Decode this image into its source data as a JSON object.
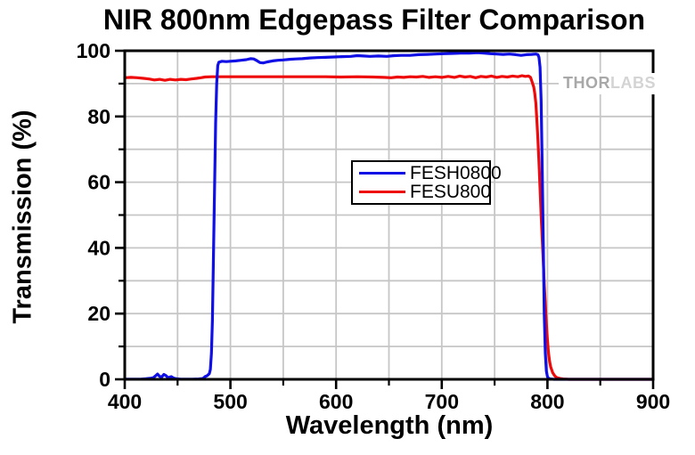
{
  "title": "NIR 800nm Edgepass Filter Comparison",
  "watermark": {
    "part1": "THOR",
    "part2": "LABS"
  },
  "chart_data": {
    "type": "line",
    "title": "NIR 800nm Edgepass Filter Comparison",
    "xlabel": "Wavelength (nm)",
    "ylabel": "Transmission (%)",
    "xlim": [
      400,
      900
    ],
    "ylim": [
      0,
      100
    ],
    "x_major_ticks": [
      400,
      500,
      600,
      700,
      800,
      900
    ],
    "x_minor_ticks": [
      450,
      550,
      650,
      750,
      850
    ],
    "y_major_ticks": [
      0,
      20,
      40,
      60,
      80,
      100
    ],
    "y_minor_ticks": [
      10,
      30,
      50,
      70,
      90
    ],
    "grid": true,
    "grid_x": [
      450,
      500,
      550,
      600,
      650,
      700,
      750,
      800,
      850
    ],
    "grid_y": [
      10,
      20,
      30,
      40,
      50,
      60,
      70,
      80,
      90
    ],
    "colors": {
      "grid": "#c6c6c6",
      "axis": "#000000",
      "fesh0800": "#0f0fe6",
      "fesu800": "#ee0a0a"
    },
    "legend": {
      "position": "center",
      "entries": [
        "FESH0800",
        "FESU800"
      ]
    },
    "series": [
      {
        "name": "FESU800",
        "color": "#ee0a0a",
        "points": [
          [
            400,
            91.8
          ],
          [
            406,
            91.9
          ],
          [
            412,
            91.8
          ],
          [
            418,
            91.6
          ],
          [
            423,
            91.4
          ],
          [
            428,
            91.1
          ],
          [
            433,
            91.3
          ],
          [
            438,
            91.0
          ],
          [
            443,
            91.3
          ],
          [
            448,
            91.1
          ],
          [
            453,
            91.3
          ],
          [
            458,
            91.2
          ],
          [
            463,
            91.4
          ],
          [
            468,
            91.6
          ],
          [
            472,
            91.8
          ],
          [
            476,
            92.0
          ],
          [
            482,
            92.1
          ],
          [
            490,
            92.1
          ],
          [
            500,
            92.1
          ],
          [
            515,
            92.1
          ],
          [
            530,
            92.1
          ],
          [
            545,
            92.1
          ],
          [
            560,
            92.1
          ],
          [
            575,
            92.1
          ],
          [
            590,
            92.1
          ],
          [
            605,
            92.0
          ],
          [
            620,
            92.1
          ],
          [
            635,
            92.0
          ],
          [
            645,
            91.9
          ],
          [
            652,
            91.8
          ],
          [
            658,
            92.0
          ],
          [
            664,
            91.9
          ],
          [
            670,
            92.1
          ],
          [
            676,
            92.0
          ],
          [
            682,
            92.2
          ],
          [
            688,
            91.9
          ],
          [
            694,
            92.1
          ],
          [
            700,
            91.9
          ],
          [
            706,
            92.2
          ],
          [
            712,
            91.9
          ],
          [
            717,
            92.3
          ],
          [
            722,
            92.0
          ],
          [
            727,
            92.2
          ],
          [
            732,
            91.8
          ],
          [
            737,
            92.2
          ],
          [
            742,
            92.0
          ],
          [
            747,
            92.3
          ],
          [
            752,
            91.9
          ],
          [
            757,
            92.2
          ],
          [
            762,
            92.0
          ],
          [
            767,
            92.3
          ],
          [
            772,
            92.1
          ],
          [
            776,
            92.4
          ],
          [
            779,
            92.2
          ],
          [
            782,
            92.3
          ],
          [
            784,
            91.9
          ],
          [
            785,
            91.0
          ],
          [
            787,
            89.0
          ],
          [
            788,
            87.0
          ],
          [
            789,
            84.0
          ],
          [
            790,
            79.0
          ],
          [
            791,
            73.0
          ],
          [
            792,
            66.0
          ],
          [
            793,
            58.0
          ],
          [
            794,
            50.0
          ],
          [
            795,
            43.0
          ],
          [
            796,
            36.0
          ],
          [
            797,
            29.0
          ],
          [
            798,
            23.0
          ],
          [
            799,
            17.0
          ],
          [
            800,
            12.0
          ],
          [
            801,
            8.0
          ],
          [
            802,
            5.5
          ],
          [
            803,
            3.8
          ],
          [
            805,
            2.0
          ],
          [
            807,
            1.0
          ],
          [
            809,
            0.5
          ],
          [
            812,
            0.25
          ],
          [
            815,
            0.1
          ],
          [
            820,
            0
          ],
          [
            840,
            0
          ],
          [
            870,
            0
          ],
          [
            900,
            0
          ]
        ]
      },
      {
        "name": "FESH0800",
        "color": "#0f0fe6",
        "points": [
          [
            400,
            0.05
          ],
          [
            408,
            0.05
          ],
          [
            415,
            0.05
          ],
          [
            420,
            0.15
          ],
          [
            424,
            0.3
          ],
          [
            427,
            0.5
          ],
          [
            429,
            1.0
          ],
          [
            431,
            1.6
          ],
          [
            433,
            0.9
          ],
          [
            435,
            0.7
          ],
          [
            437,
            1.5
          ],
          [
            439,
            1.1
          ],
          [
            441,
            0.5
          ],
          [
            444,
            0.8
          ],
          [
            446,
            0.4
          ],
          [
            449,
            0.15
          ],
          [
            453,
            0.05
          ],
          [
            458,
            0.05
          ],
          [
            464,
            0.05
          ],
          [
            470,
            0.1
          ],
          [
            474,
            0.25
          ],
          [
            476,
            0.8
          ],
          [
            478,
            1.1
          ],
          [
            480,
            1.7
          ],
          [
            481,
            3
          ],
          [
            482,
            8
          ],
          [
            483,
            18
          ],
          [
            484,
            38
          ],
          [
            485,
            58
          ],
          [
            486,
            78
          ],
          [
            487,
            90
          ],
          [
            488,
            95.5
          ],
          [
            489,
            96.5
          ],
          [
            492,
            96.8
          ],
          [
            496,
            96.7
          ],
          [
            500,
            96.8
          ],
          [
            505,
            96.9
          ],
          [
            510,
            97.1
          ],
          [
            515,
            97.3
          ],
          [
            519,
            97.6
          ],
          [
            522,
            97.5
          ],
          [
            525,
            97.0
          ],
          [
            528,
            96.4
          ],
          [
            531,
            96.3
          ],
          [
            535,
            96.6
          ],
          [
            540,
            96.9
          ],
          [
            545,
            97.1
          ],
          [
            550,
            97.2
          ],
          [
            556,
            97.4
          ],
          [
            562,
            97.5
          ],
          [
            568,
            97.6
          ],
          [
            575,
            97.8
          ],
          [
            582,
            97.9
          ],
          [
            590,
            98.0
          ],
          [
            598,
            98.1
          ],
          [
            606,
            98.2
          ],
          [
            614,
            98.3
          ],
          [
            620,
            98.5
          ],
          [
            626,
            98.4
          ],
          [
            632,
            98.3
          ],
          [
            640,
            98.4
          ],
          [
            648,
            98.3
          ],
          [
            655,
            98.5
          ],
          [
            662,
            98.6
          ],
          [
            670,
            98.6
          ],
          [
            678,
            98.8
          ],
          [
            686,
            98.9
          ],
          [
            694,
            99.0
          ],
          [
            702,
            99.1
          ],
          [
            710,
            99.2
          ],
          [
            718,
            99.3
          ],
          [
            726,
            99.3
          ],
          [
            734,
            99.4
          ],
          [
            740,
            99.3
          ],
          [
            746,
            99.1
          ],
          [
            752,
            99.0
          ],
          [
            758,
            98.9
          ],
          [
            764,
            99.0
          ],
          [
            770,
            98.8
          ],
          [
            775,
            98.6
          ],
          [
            780,
            98.8
          ],
          [
            785,
            98.9
          ],
          [
            789,
            99.0
          ],
          [
            791,
            98.8
          ],
          [
            792,
            98.0
          ],
          [
            793,
            95.0
          ],
          [
            794,
            85.0
          ],
          [
            795,
            65.0
          ],
          [
            796,
            42.0
          ],
          [
            797,
            20.0
          ],
          [
            798,
            8.0
          ],
          [
            799,
            2.5
          ],
          [
            800,
            0.8
          ],
          [
            801,
            0.3
          ],
          [
            803,
            0.1
          ],
          [
            806,
            0
          ],
          [
            815,
            0
          ],
          [
            840,
            0
          ],
          [
            870,
            0
          ],
          [
            900,
            0
          ]
        ]
      }
    ]
  }
}
